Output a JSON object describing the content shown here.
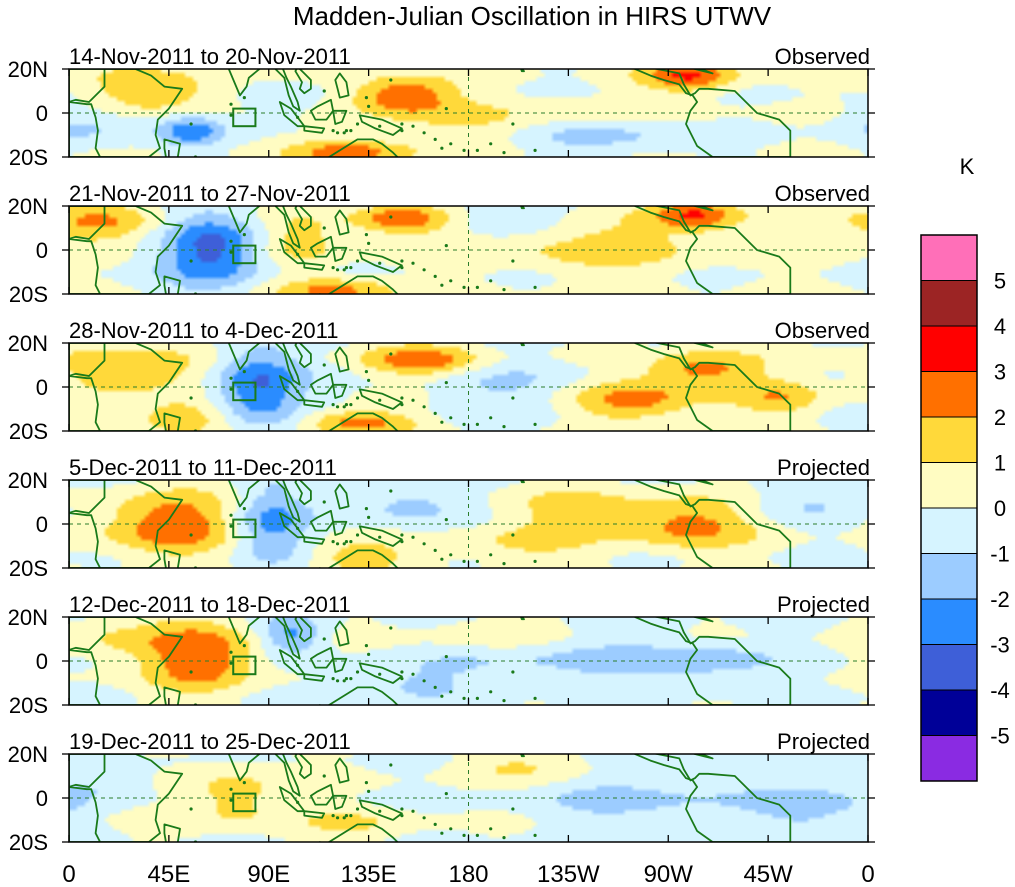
{
  "title": "Madden-Julian Oscillation in HIRS UTWV",
  "chart_data": {
    "type": "heatmap",
    "title": "Madden-Julian Oscillation in HIRS UTWV",
    "lat_ticks": [
      "20N",
      "0",
      "20S"
    ],
    "lon_ticks": [
      "0",
      "45E",
      "90E",
      "135E",
      "180",
      "135W",
      "90W",
      "45W",
      "0"
    ],
    "lon_range": [
      0,
      360
    ],
    "lat_range": [
      -20,
      20
    ],
    "box_region": {
      "lon": [
        74,
        84
      ],
      "lat": [
        -6,
        2
      ]
    },
    "colorbar": {
      "unit": "K",
      "levels": [
        "5",
        "4",
        "3",
        "2",
        "1",
        "0",
        "-1",
        "-2",
        "-3",
        "-4",
        "-5"
      ],
      "colors": [
        "#ff6fb8",
        "#9c2424",
        "#ff0000",
        "#ff7000",
        "#ffd93a",
        "#fffcc2",
        "#d6f4ff",
        "#9cccff",
        "#2a8cff",
        "#3e5fd8",
        "#000098",
        "#8a2be2"
      ]
    },
    "panels": [
      {
        "period": "14-Nov-2011 to 20-Nov-2011",
        "status": "Observed",
        "anomalies": [
          {
            "lon": 150,
            "lat": 8,
            "value": 3,
            "sx": 16,
            "sy": 6
          },
          {
            "lon": 127,
            "lat": -18,
            "value": 2.6,
            "sx": 18,
            "sy": 4
          },
          {
            "lon": 280,
            "lat": 17,
            "value": 3,
            "sx": 15,
            "sy": 5
          },
          {
            "lon": 40,
            "lat": 10,
            "value": 2,
            "sx": 22,
            "sy": 7
          },
          {
            "lon": 210,
            "lat": -5,
            "value": 1.2,
            "sx": 50,
            "sy": 8
          },
          {
            "lon": 55,
            "lat": -8,
            "value": -2.4,
            "sx": 10,
            "sy": 5
          },
          {
            "lon": 240,
            "lat": -10,
            "value": -2,
            "sx": 30,
            "sy": 6
          },
          {
            "lon": 10,
            "lat": -5,
            "value": -1.2,
            "sx": 18,
            "sy": 8
          },
          {
            "lon": 95,
            "lat": 5,
            "value": -1,
            "sx": 12,
            "sy": 8
          }
        ]
      },
      {
        "period": "21-Nov-2011 to 27-Nov-2011",
        "status": "Observed",
        "anomalies": [
          {
            "lon": 65,
            "lat": 0,
            "value": -3.4,
            "sx": 16,
            "sy": 12
          },
          {
            "lon": 150,
            "lat": 14,
            "value": 3,
            "sx": 16,
            "sy": 5
          },
          {
            "lon": 120,
            "lat": -18,
            "value": 2.4,
            "sx": 18,
            "sy": 4
          },
          {
            "lon": 282,
            "lat": 16,
            "value": 3,
            "sx": 14,
            "sy": 5
          },
          {
            "lon": 240,
            "lat": 2,
            "value": 1.4,
            "sx": 40,
            "sy": 9
          },
          {
            "lon": 15,
            "lat": 12,
            "value": 2,
            "sx": 20,
            "sy": 6
          },
          {
            "lon": 105,
            "lat": 5,
            "value": 1.6,
            "sx": 14,
            "sy": 8
          },
          {
            "lon": 190,
            "lat": 15,
            "value": -1,
            "sx": 30,
            "sy": 6
          }
        ]
      },
      {
        "period": "28-Nov-2011 to 4-Dec-2011",
        "status": "Observed",
        "anomalies": [
          {
            "lon": 85,
            "lat": 0,
            "value": -3.3,
            "sx": 14,
            "sy": 13
          },
          {
            "lon": 30,
            "lat": 8,
            "value": 2.2,
            "sx": 22,
            "sy": 8
          },
          {
            "lon": 50,
            "lat": -14,
            "value": 2,
            "sx": 16,
            "sy": 5
          },
          {
            "lon": 160,
            "lat": 12,
            "value": 2.6,
            "sx": 20,
            "sy": 5
          },
          {
            "lon": 130,
            "lat": -16,
            "value": 2.6,
            "sx": 18,
            "sy": 4
          },
          {
            "lon": 255,
            "lat": -6,
            "value": 2.4,
            "sx": 22,
            "sy": 7
          },
          {
            "lon": 285,
            "lat": 8,
            "value": 2.4,
            "sx": 18,
            "sy": 6
          },
          {
            "lon": 320,
            "lat": -5,
            "value": 1.6,
            "sx": 14,
            "sy": 6
          },
          {
            "lon": 200,
            "lat": 0,
            "value": -1,
            "sx": 30,
            "sy": 10
          }
        ]
      },
      {
        "period": "5-Dec-2011 to 11-Dec-2011",
        "status": "Projected",
        "anomalies": [
          {
            "lon": 45,
            "lat": 0,
            "value": 2.8,
            "sx": 22,
            "sy": 10
          },
          {
            "lon": 90,
            "lat": 0,
            "value": -2.4,
            "sx": 12,
            "sy": 12
          },
          {
            "lon": 150,
            "lat": 10,
            "value": -1.4,
            "sx": 20,
            "sy": 8
          },
          {
            "lon": 280,
            "lat": 0,
            "value": 2.3,
            "sx": 20,
            "sy": 8
          },
          {
            "lon": 230,
            "lat": 5,
            "value": 1.4,
            "sx": 25,
            "sy": 8
          },
          {
            "lon": 130,
            "lat": -15,
            "value": 1.6,
            "sx": 16,
            "sy": 5
          },
          {
            "lon": 200,
            "lat": -10,
            "value": 1,
            "sx": 25,
            "sy": 6
          },
          {
            "lon": 330,
            "lat": 10,
            "value": -1,
            "sx": 20,
            "sy": 6
          }
        ]
      },
      {
        "period": "12-Dec-2011 to 18-Dec-2011",
        "status": "Projected",
        "anomalies": [
          {
            "lon": 60,
            "lat": 2,
            "value": 2.8,
            "sx": 18,
            "sy": 11
          },
          {
            "lon": 100,
            "lat": 12,
            "value": -2.2,
            "sx": 10,
            "sy": 6
          },
          {
            "lon": 230,
            "lat": 0,
            "value": -1.2,
            "sx": 45,
            "sy": 8
          },
          {
            "lon": 20,
            "lat": 10,
            "value": 1,
            "sx": 20,
            "sy": 8
          },
          {
            "lon": 150,
            "lat": -10,
            "value": -1,
            "sx": 25,
            "sy": 6
          },
          {
            "lon": 190,
            "lat": 12,
            "value": 1,
            "sx": 20,
            "sy": 5
          },
          {
            "lon": 290,
            "lat": 0,
            "value": -1.2,
            "sx": 20,
            "sy": 6
          }
        ]
      },
      {
        "period": "19-Dec-2011 to 25-Dec-2011",
        "status": "Projected",
        "anomalies": [
          {
            "lon": 75,
            "lat": 0,
            "value": 1.6,
            "sx": 16,
            "sy": 10
          },
          {
            "lon": 210,
            "lat": 14,
            "value": 1.2,
            "sx": 25,
            "sy": 5
          },
          {
            "lon": 260,
            "lat": 0,
            "value": -1.2,
            "sx": 40,
            "sy": 10
          },
          {
            "lon": 340,
            "lat": -5,
            "value": -1.2,
            "sx": 20,
            "sy": 10
          },
          {
            "lon": 130,
            "lat": -12,
            "value": 1,
            "sx": 20,
            "sy": 5
          },
          {
            "lon": 20,
            "lat": 8,
            "value": -1,
            "sx": 15,
            "sy": 6
          }
        ]
      }
    ]
  }
}
